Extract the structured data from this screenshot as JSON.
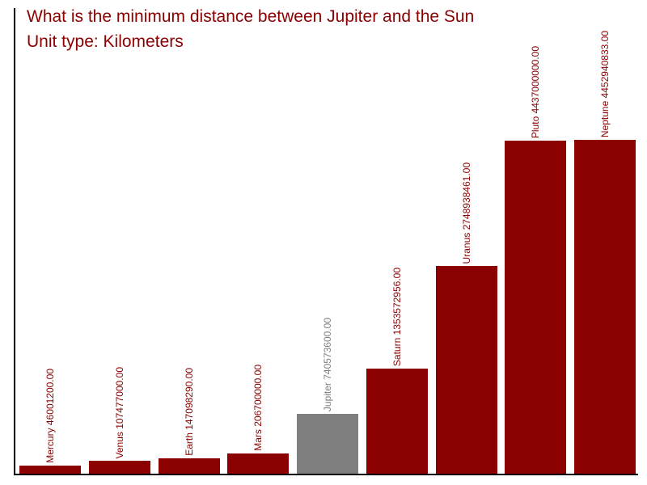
{
  "chart_data": {
    "type": "bar",
    "title": "What is the minimum distance between Jupiter and the Sun",
    "subtitle": "Unit type: Kilometers",
    "unit": "Kilometers",
    "categories": [
      "Mercury",
      "Venus",
      "Earth",
      "Mars",
      "Jupiter",
      "Saturn",
      "Uranus",
      "Pluto",
      "Neptune"
    ],
    "values": [
      46001200,
      107477000,
      147098290,
      206700000,
      740573600,
      1353572956,
      2748938461,
      4437000000,
      4452940833
    ],
    "bar_labels": [
      "Mercury 46001200.00",
      "Venus 107477000.00",
      "Earth 147098290.00",
      "Mars 206700000.00",
      "Jupiter 740573600.00",
      "Saturn 1353572956.00",
      "Uranus 2748938461.00",
      "Pluto 4437000000.00",
      "Neptune 4452940833.00"
    ],
    "highlight_category": "Jupiter",
    "highlight_index": 4,
    "colors": {
      "bar": "#8B0000",
      "highlight_bar": "#7F7F7F",
      "title": "#8B0000",
      "axis": "#000000",
      "background": "#FFFFFF"
    },
    "ylim": [
      0,
      4452940833
    ],
    "grid": false,
    "legend": false,
    "y_ticks": [],
    "x_ticks": []
  }
}
